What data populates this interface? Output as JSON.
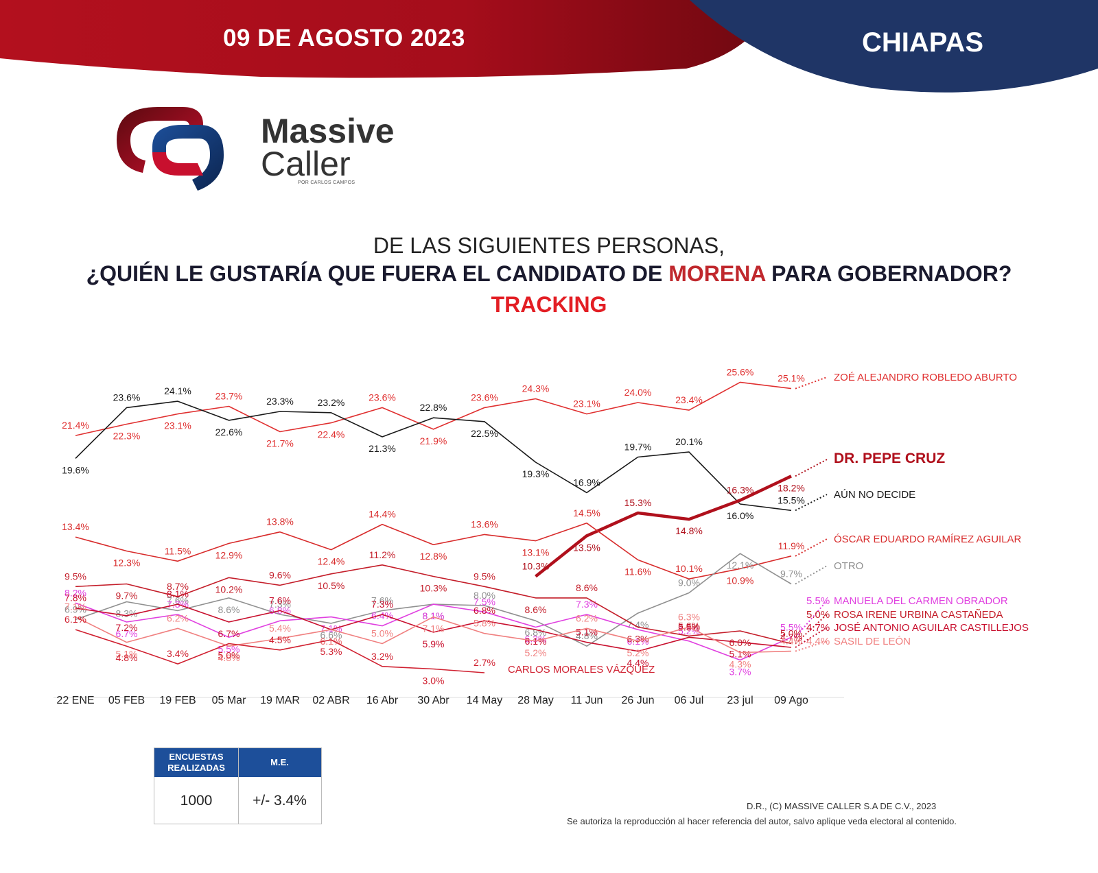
{
  "header": {
    "date": "09 DE AGOSTO 2023",
    "state": "CHIAPAS",
    "colors": {
      "red": "#b3101e",
      "navy": "#1f3566"
    }
  },
  "brand": {
    "name_line1": "Massive",
    "name_line2": "Caller",
    "tagline": "POR CARLOS CAMPOS"
  },
  "question": {
    "line1": "DE LAS SIGUIENTES PERSONAS,",
    "line2_before": "¿QUIÉN LE GUSTARÍA QUE FUERA EL CANDIDATO DE ",
    "line2_highlight": "MORENA",
    "line2_after": " PARA GOBERNADOR?",
    "line3": "TRACKING"
  },
  "chart_data": {
    "type": "line",
    "x": [
      "22 ENE",
      "05 FEB",
      "19 FEB",
      "05 Mar",
      "19 MAR",
      "02 ABR",
      "16 Abr",
      "30 Abr",
      "14 May",
      "28 May",
      "11 Jun",
      "26 Jun",
      "06 Jul",
      "23 jul",
      "09 Ago"
    ],
    "y_unit": "%",
    "series": [
      {
        "name": "ZOÉ ALEJANDRO ROBLEDO ABURTO",
        "color": "#e03030",
        "values": [
          21.4,
          22.3,
          23.1,
          23.7,
          21.7,
          22.4,
          23.6,
          21.9,
          23.6,
          24.3,
          23.1,
          24.0,
          23.4,
          25.6,
          25.1
        ],
        "legend_value": ""
      },
      {
        "name": "AÚN NO DECIDE",
        "color": "#1a1a1a",
        "values": [
          19.6,
          23.6,
          24.1,
          22.6,
          23.3,
          23.2,
          21.3,
          22.8,
          22.5,
          19.3,
          16.9,
          19.7,
          20.1,
          16.0,
          15.5
        ],
        "legend_value": ""
      },
      {
        "name": "DR. PEPE CRUZ",
        "color": "#b0101c",
        "values": [
          null,
          null,
          null,
          null,
          null,
          null,
          null,
          null,
          null,
          10.3,
          13.5,
          15.3,
          14.8,
          16.3,
          18.2
        ],
        "legend_value": ""
      },
      {
        "name": "ÓSCAR EDUARDO RAMÍREZ AGUILAR",
        "color": "#d82c2c",
        "values": [
          13.4,
          12.3,
          11.5,
          12.9,
          13.8,
          12.4,
          14.4,
          12.8,
          13.6,
          13.1,
          14.5,
          11.6,
          10.1,
          10.9,
          11.9
        ],
        "legend_value": ""
      },
      {
        "name": "OTRO",
        "color": "#909090",
        "values": [
          6.9,
          8.3,
          7.6,
          8.6,
          7.3,
          6.6,
          7.6,
          8.1,
          8.0,
          6.8,
          4.8,
          7.4,
          9.0,
          12.1,
          9.7
        ],
        "legend_value": ""
      },
      {
        "name": "MANUELA DEL CARMEN OBRADOR",
        "color": "#e040e0",
        "values": [
          8.2,
          6.7,
          7.3,
          5.5,
          6.8,
          7.1,
          6.4,
          8.1,
          7.5,
          6.3,
          7.3,
          6.1,
          5.2,
          3.7,
          5.5
        ],
        "legend_value": "5.5%"
      },
      {
        "name": "ROSA IRENE URBINA CASTAÑEDA",
        "color": "#c41e2a",
        "values": [
          9.5,
          9.7,
          8.7,
          10.2,
          9.6,
          10.5,
          11.2,
          10.3,
          9.5,
          8.6,
          8.6,
          6.3,
          5.6,
          6.0,
          5.0
        ],
        "legend_value": "5.0%"
      },
      {
        "name": "JOSÉ ANTONIO AGUILAR CASTILLEJOS",
        "color": "#c8102e",
        "values": [
          7.8,
          7.2,
          8.1,
          6.7,
          7.6,
          6.1,
          7.3,
          5.9,
          6.8,
          6.1,
          5.1,
          4.4,
          5.5,
          5.1,
          4.7
        ],
        "legend_value": "4.7%"
      },
      {
        "name": "SASIL DE LEÓN",
        "color": "#f08080",
        "values": [
          7.1,
          5.1,
          6.2,
          4.8,
          5.4,
          6.1,
          5.0,
          7.1,
          5.8,
          5.2,
          6.2,
          5.2,
          6.3,
          4.3,
          4.4
        ],
        "legend_value": "4.4%"
      },
      {
        "name": "CARLOS MORALES VÁZQUEZ",
        "color": "#d02030",
        "values": [
          6.1,
          4.8,
          3.4,
          5.0,
          4.5,
          5.3,
          3.2,
          3.0,
          2.7,
          null,
          null,
          null,
          null,
          null,
          null
        ],
        "legend_value": ""
      }
    ]
  },
  "survey_table": {
    "col1_header": "ENCUESTAS REALIZADAS",
    "col2_header": "M.E.",
    "col1_value": "1000",
    "col2_value": "+/- 3.4%"
  },
  "footer": {
    "copyright": "D.R., (C) MASSIVE CALLER S.A DE C.V., 2023",
    "notice": "Se autoriza la reproducción al hacer referencia del autor, salvo aplique veda electoral al contenido."
  }
}
